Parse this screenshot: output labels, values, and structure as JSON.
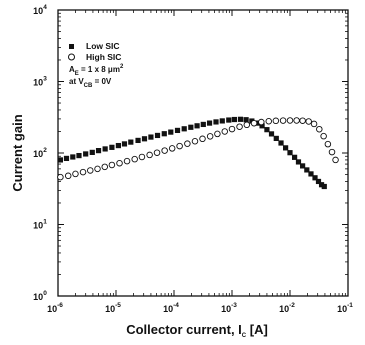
{
  "chart_data": {
    "type": "scatter",
    "xlabel": "Collector current, I",
    "xlabel_sub": "C",
    "xlabel_unit": " [A]",
    "ylabel": "Current gain",
    "xscale": "log",
    "yscale": "log",
    "xlim": [
      1e-06,
      0.1
    ],
    "ylim": [
      1,
      10000
    ],
    "grid": false,
    "legend_position": "top-left",
    "x_ticks": [
      {
        "value": 1e-06,
        "base": "10",
        "exp": "-6"
      },
      {
        "value": 1e-05,
        "base": "10",
        "exp": "-5"
      },
      {
        "value": 0.0001,
        "base": "10",
        "exp": "-4"
      },
      {
        "value": 0.001,
        "base": "10",
        "exp": "-3"
      },
      {
        "value": 0.01,
        "base": "10",
        "exp": "-2"
      },
      {
        "value": 0.1,
        "base": "10",
        "exp": "-1"
      }
    ],
    "y_ticks": [
      {
        "value": 1,
        "base": "10",
        "exp": "0"
      },
      {
        "value": 10,
        "base": "10",
        "exp": "1"
      },
      {
        "value": 100,
        "base": "10",
        "exp": "2"
      },
      {
        "value": 1000,
        "base": "10",
        "exp": "3"
      },
      {
        "value": 10000,
        "base": "10",
        "exp": "4"
      }
    ],
    "annotations": [
      {
        "parts": [
          [
            "A",
            "main"
          ],
          [
            "E",
            "sub"
          ],
          [
            " = 1 x 8 μm",
            "main"
          ],
          [
            "2",
            "sup"
          ]
        ]
      },
      {
        "parts": [
          [
            "at V",
            "main"
          ],
          [
            "CB",
            "sub"
          ],
          [
            " = 0V",
            "main"
          ]
        ]
      }
    ],
    "series": [
      {
        "name": "Low SIC",
        "marker": "filled-square",
        "color": "#111111",
        "points": [
          [
            1.1e-06,
            80
          ],
          [
            1.4e-06,
            84
          ],
          [
            1.8e-06,
            88
          ],
          [
            2.3e-06,
            92
          ],
          [
            3e-06,
            97
          ],
          [
            3.9e-06,
            102
          ],
          [
            5e-06,
            108
          ],
          [
            6.5e-06,
            114
          ],
          [
            8.5e-06,
            120
          ],
          [
            1.1e-05,
            127
          ],
          [
            1.4e-05,
            134
          ],
          [
            1.8e-05,
            142
          ],
          [
            2.4e-05,
            150
          ],
          [
            3.1e-05,
            158
          ],
          [
            4e-05,
            167
          ],
          [
            5.2e-05,
            176
          ],
          [
            6.8e-05,
            186
          ],
          [
            8.8e-05,
            196
          ],
          [
            0.000115,
            207
          ],
          [
            0.00015,
            218
          ],
          [
            0.000195,
            229
          ],
          [
            0.00025,
            240
          ],
          [
            0.00032,
            251
          ],
          [
            0.00041,
            262
          ],
          [
            0.00053,
            272
          ],
          [
            0.00068,
            281
          ],
          [
            0.00088,
            289
          ],
          [
            0.0011,
            294
          ],
          [
            0.0014,
            296
          ],
          [
            0.00175,
            292
          ],
          [
            0.0022,
            280
          ],
          [
            0.0027,
            262
          ],
          [
            0.0033,
            240
          ],
          [
            0.004,
            212
          ],
          [
            0.0048,
            185
          ],
          [
            0.0058,
            160
          ],
          [
            0.007,
            138
          ],
          [
            0.0084,
            118
          ],
          [
            0.01,
            101
          ],
          [
            0.012,
            87
          ],
          [
            0.014,
            75
          ],
          [
            0.0165,
            66
          ],
          [
            0.0195,
            58
          ],
          [
            0.023,
            51
          ],
          [
            0.027,
            45
          ],
          [
            0.031,
            40
          ],
          [
            0.035,
            36
          ],
          [
            0.039,
            34
          ]
        ]
      },
      {
        "name": "High SIC",
        "marker": "open-circle",
        "color": "#111111",
        "points": [
          [
            1.1e-06,
            46
          ],
          [
            1.5e-06,
            48
          ],
          [
            2e-06,
            51
          ],
          [
            2.7e-06,
            54
          ],
          [
            3.6e-06,
            57
          ],
          [
            4.8e-06,
            60
          ],
          [
            6.4e-06,
            64
          ],
          [
            8.5e-06,
            68
          ],
          [
            1.15e-05,
            72
          ],
          [
            1.55e-05,
            77
          ],
          [
            2.1e-05,
            82
          ],
          [
            2.8e-05,
            88
          ],
          [
            3.8e-05,
            94
          ],
          [
            5.1e-05,
            101
          ],
          [
            6.9e-05,
            108
          ],
          [
            9.3e-05,
            116
          ],
          [
            0.000125,
            125
          ],
          [
            0.00017,
            135
          ],
          [
            0.00023,
            146
          ],
          [
            0.00031,
            158
          ],
          [
            0.00042,
            171
          ],
          [
            0.00056,
            185
          ],
          [
            0.00075,
            200
          ],
          [
            0.001,
            216
          ],
          [
            0.00135,
            233
          ],
          [
            0.0018,
            248
          ],
          [
            0.0024,
            261
          ],
          [
            0.0032,
            271
          ],
          [
            0.0043,
            278
          ],
          [
            0.0057,
            282
          ],
          [
            0.0076,
            284
          ],
          [
            0.01,
            285
          ],
          [
            0.013,
            285
          ],
          [
            0.0165,
            283
          ],
          [
            0.021,
            276
          ],
          [
            0.026,
            255
          ],
          [
            0.032,
            215
          ],
          [
            0.038,
            172
          ],
          [
            0.045,
            133
          ],
          [
            0.053,
            103
          ],
          [
            0.061,
            80
          ]
        ]
      }
    ]
  }
}
